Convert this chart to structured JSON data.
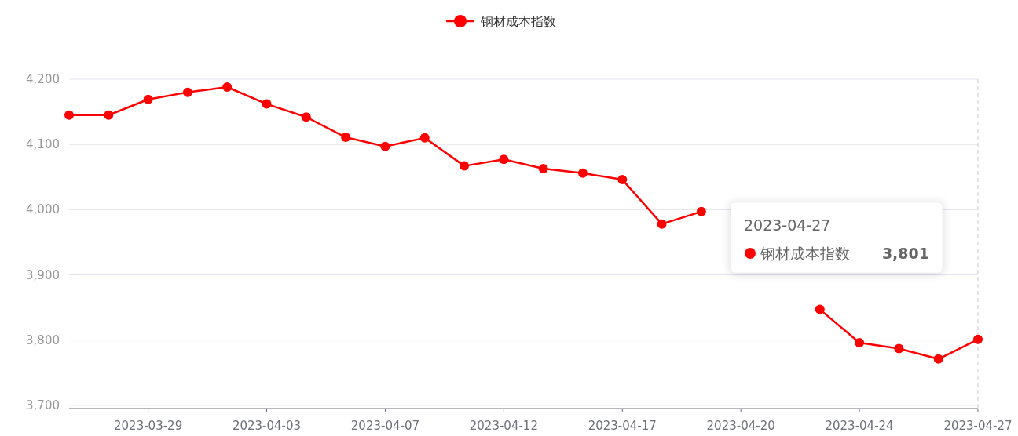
{
  "chart_data": {
    "type": "line",
    "categories": [
      null,
      null,
      "2023-03-29",
      null,
      null,
      "2023-04-03",
      null,
      null,
      "2023-04-07",
      null,
      null,
      "2023-04-12",
      null,
      null,
      "2023-04-17",
      null,
      null,
      "2023-04-20",
      null,
      null,
      "2023-04-24",
      null,
      null,
      "2023-04-27"
    ],
    "series": [
      {
        "name": "钢材成本指数",
        "color": "#ff0000",
        "values": [
          4145,
          4145,
          4169,
          4180,
          4188,
          4162,
          4142,
          4111,
          4097,
          4110,
          4067,
          4077,
          4063,
          4056,
          4046,
          3978,
          3997,
          null,
          null,
          3847,
          3796,
          3787,
          3771,
          3801
        ]
      }
    ],
    "ylim": [
      3695,
      4200
    ],
    "yticks": [
      {
        "value": 3700,
        "label": "3,700"
      },
      {
        "value": 3800,
        "label": "3,800"
      },
      {
        "value": 3900,
        "label": "3,900"
      },
      {
        "value": 4000,
        "label": "4,000"
      },
      {
        "value": 4100,
        "label": "4,100"
      },
      {
        "value": 4200,
        "label": "4,200"
      }
    ],
    "grid": "y",
    "legend": "top",
    "marker": "circle",
    "line_style": "solid",
    "ref_lines": [
      {
        "axis": "x",
        "value": "2023-04-27",
        "color": "#c8c8d0",
        "line_style": "dashed"
      }
    ],
    "annotations": [
      "2023-04-27",
      "钢材成本指数",
      "3,801"
    ]
  }
}
